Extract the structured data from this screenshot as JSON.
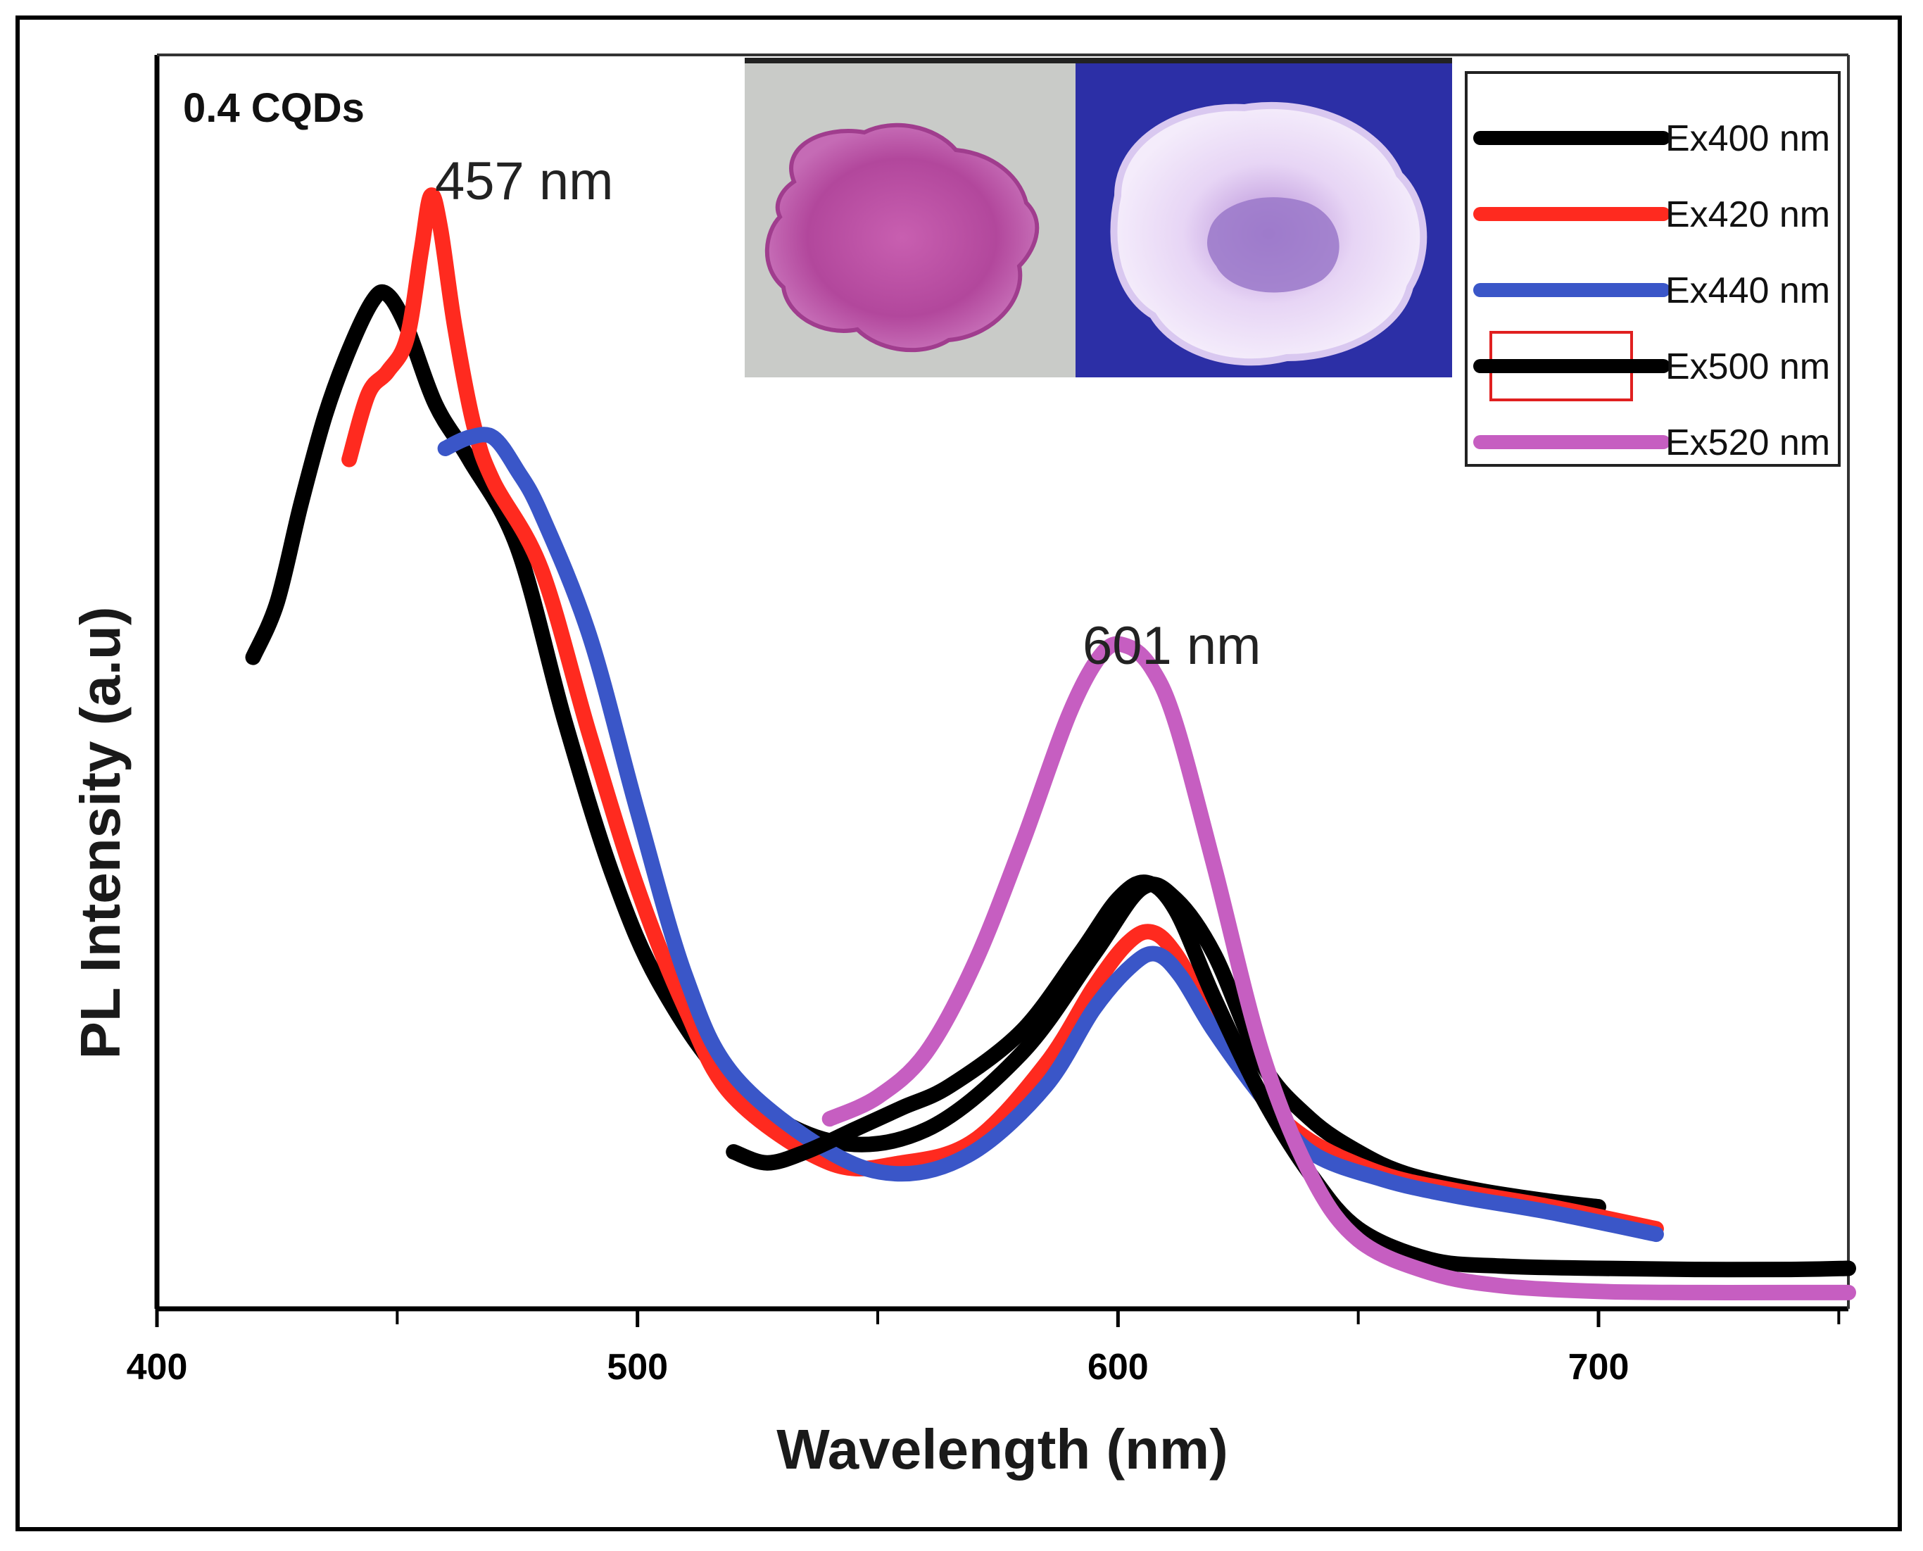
{
  "chart_data": {
    "type": "line",
    "title": "",
    "xlabel": "Wavelength (nm)",
    "ylabel": "PL Intensity (a.u)",
    "xlim": [
      400,
      752
    ],
    "ylim": [
      0,
      100
    ],
    "xticks": [
      400,
      500,
      600,
      700
    ],
    "xtick_labels": [
      "400",
      "500",
      "600",
      "700"
    ],
    "grid": false,
    "legend": "top-right",
    "sample_label": "0.4 CQDs",
    "annotations": [
      {
        "text": "457 nm",
        "x": 457,
        "y": 100
      },
      {
        "text": "601 nm",
        "x": 601,
        "y": 59
      }
    ],
    "inset": {
      "description": "fluorescence micrograph pair",
      "panels": [
        "bright-field",
        "fluorescence"
      ]
    },
    "series": [
      {
        "name": "Ex400 nm",
        "color": "#000000",
        "legend_style": "line",
        "x": [
          420,
          425,
          430,
          435,
          440,
          445,
          448,
          452,
          458,
          465,
          475,
          485,
          495,
          505,
          520,
          540,
          560,
          580,
          595,
          605,
          612,
          620,
          630,
          640,
          650,
          660,
          675,
          690,
          700
        ],
        "y": [
          58,
          63,
          72,
          80,
          86,
          90.5,
          91,
          88,
          81,
          76,
          68,
          52,
          38,
          28,
          19,
          14,
          15,
          22,
          31,
          37,
          36,
          31,
          21,
          16,
          13,
          11,
          9.5,
          8.5,
          8
        ]
      },
      {
        "name": "Ex420 nm",
        "color": "#ff2a1f",
        "legend_style": "line",
        "x": [
          440,
          444,
          448,
          452,
          455,
          457,
          459,
          462,
          466,
          470,
          480,
          490,
          500,
          510,
          520,
          540,
          555,
          570,
          585,
          595,
          602,
          607,
          612,
          620,
          630,
          640,
          655,
          670,
          690,
          712
        ],
        "y": [
          76,
          82,
          84,
          87,
          95,
          100,
          97,
          88,
          79,
          74,
          66,
          51,
          37,
          26,
          18,
          12,
          12,
          14,
          21,
          28,
          32,
          33,
          31,
          25,
          18,
          14,
          11,
          9.5,
          8,
          6
        ]
      },
      {
        "name": "Ex440 nm",
        "color": "#3a56c8",
        "legend_style": "line",
        "x": [
          460,
          465,
          470,
          475,
          480,
          490,
          500,
          510,
          520,
          540,
          555,
          570,
          585,
          595,
          603,
          608,
          613,
          620,
          630,
          640,
          655,
          670,
          690,
          712
        ],
        "y": [
          77,
          78,
          78,
          75,
          71,
          60,
          44,
          29,
          20,
          13,
          11,
          13,
          19,
          26,
          30,
          31,
          29,
          24,
          18,
          13,
          10.5,
          9,
          7.5,
          5.5
        ]
      },
      {
        "name": "Ex500 nm",
        "color": "#000000",
        "legend_style": "line-with-red-box",
        "x": [
          520,
          527,
          535,
          545,
          555,
          565,
          580,
          592,
          600,
          606,
          612,
          620,
          630,
          640,
          650,
          665,
          680,
          700,
          720,
          740,
          752
        ],
        "y": [
          13,
          12,
          13,
          15,
          17,
          19,
          24,
          31,
          36,
          37.5,
          35,
          27,
          18,
          11,
          6,
          3.2,
          2.6,
          2.4,
          2.3,
          2.3,
          2.4
        ]
      },
      {
        "name": "Ex520 nm",
        "color": "#c65ec1",
        "legend_style": "line",
        "x": [
          540,
          550,
          560,
          570,
          580,
          590,
          597,
          602,
          607,
          612,
          620,
          630,
          640,
          650,
          665,
          680,
          700,
          720,
          740,
          752
        ],
        "y": [
          16,
          18,
          22,
          30,
          41,
          53,
          58.5,
          59,
          57,
          52,
          39,
          22,
          11,
          5,
          2,
          0.8,
          0.3,
          0.2,
          0.2,
          0.2
        ]
      }
    ]
  }
}
